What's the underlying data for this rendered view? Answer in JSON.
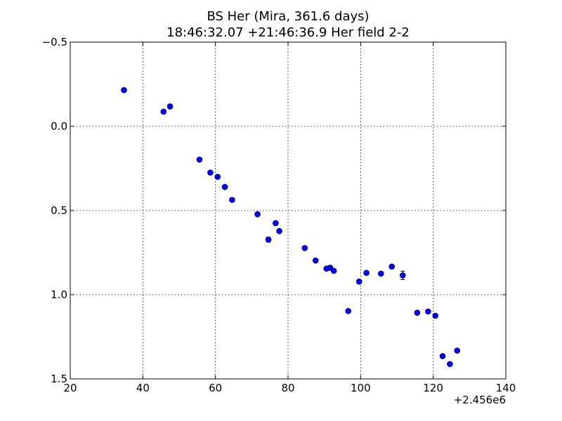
{
  "chart_data": {
    "type": "scatter",
    "title": "BS Her (Mira, 361.6 days)",
    "subtitle": "18:46:32.07 +21:46:36.9 Her field 2-2",
    "xlabel": "",
    "ylabel": "",
    "x_offset_label": "+2.456e6",
    "xlim": [
      20,
      140
    ],
    "ylim": [
      1.5,
      -0.5
    ],
    "y_inverted": true,
    "grid": true,
    "x_ticks": [
      20,
      40,
      60,
      80,
      100,
      120,
      140
    ],
    "y_ticks": [
      -0.5,
      0.0,
      0.5,
      1.0,
      1.5
    ],
    "x_tick_labels": [
      "20",
      "40",
      "60",
      "80",
      "100",
      "120",
      "140"
    ],
    "y_tick_labels": [
      "−0.5",
      "0.0",
      "0.5",
      "1.0",
      "1.5"
    ],
    "marker_color": "#0000ff",
    "series": [
      {
        "points": [
          {
            "x": 34.8,
            "y": -0.215
          },
          {
            "x": 45.7,
            "y": -0.087
          },
          {
            "x": 47.5,
            "y": -0.118
          },
          {
            "x": 55.6,
            "y": 0.198
          },
          {
            "x": 58.6,
            "y": 0.275
          },
          {
            "x": 60.6,
            "y": 0.3
          },
          {
            "x": 62.6,
            "y": 0.36
          },
          {
            "x": 64.6,
            "y": 0.437
          },
          {
            "x": 71.6,
            "y": 0.522
          },
          {
            "x": 74.6,
            "y": 0.673,
            "yerr": 0.015
          },
          {
            "x": 76.6,
            "y": 0.575
          },
          {
            "x": 77.6,
            "y": 0.622
          },
          {
            "x": 84.6,
            "y": 0.723
          },
          {
            "x": 87.6,
            "y": 0.797
          },
          {
            "x": 90.6,
            "y": 0.845
          },
          {
            "x": 91.6,
            "y": 0.84
          },
          {
            "x": 92.6,
            "y": 0.858
          },
          {
            "x": 96.6,
            "y": 1.097
          },
          {
            "x": 99.6,
            "y": 0.922
          },
          {
            "x": 101.6,
            "y": 0.87
          },
          {
            "x": 105.6,
            "y": 0.875
          },
          {
            "x": 108.6,
            "y": 0.833
          },
          {
            "x": 111.6,
            "y": 0.885,
            "yerr": 0.025
          },
          {
            "x": 115.6,
            "y": 1.107
          },
          {
            "x": 118.6,
            "y": 1.1
          },
          {
            "x": 120.6,
            "y": 1.125
          },
          {
            "x": 122.6,
            "y": 1.365
          },
          {
            "x": 124.6,
            "y": 1.412
          },
          {
            "x": 126.6,
            "y": 1.332
          }
        ]
      }
    ]
  }
}
